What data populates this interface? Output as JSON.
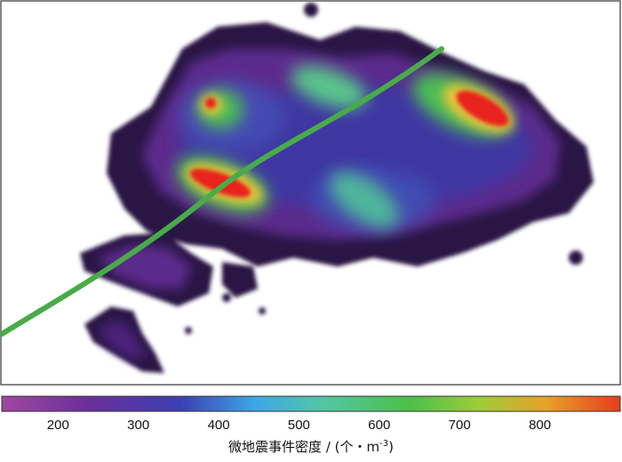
{
  "chart_data": {
    "type": "heatmap",
    "title": "",
    "colorbar": {
      "label": "微地震事件密度 / (个・m",
      "label_superscript": "-3",
      "label_suffix": ")",
      "ticks": [
        "200",
        "300",
        "400",
        "500",
        "600",
        "700",
        "800"
      ],
      "tick_values": [
        200,
        300,
        400,
        500,
        600,
        700,
        800
      ],
      "range": [
        130,
        900
      ],
      "colors": [
        "#a0489f",
        "#6a2f9a",
        "#3d3fb3",
        "#3da7e6",
        "#52c7a5",
        "#4dbf4a",
        "#9ccc3a",
        "#e6a227",
        "#e63c1f"
      ]
    },
    "hotspots": [
      {
        "name": "density-peak-north-east",
        "density": 850
      },
      {
        "name": "density-peak-west",
        "density": 850
      },
      {
        "name": "density-peak-north-west",
        "density": 800
      },
      {
        "name": "density-zone-north-center",
        "density": 600
      },
      {
        "name": "density-zone-south-center",
        "density": 520
      }
    ],
    "background_density": 250,
    "well_trajectory": {
      "color": "#3fb23f",
      "dot_color": "#c05ab0"
    }
  }
}
